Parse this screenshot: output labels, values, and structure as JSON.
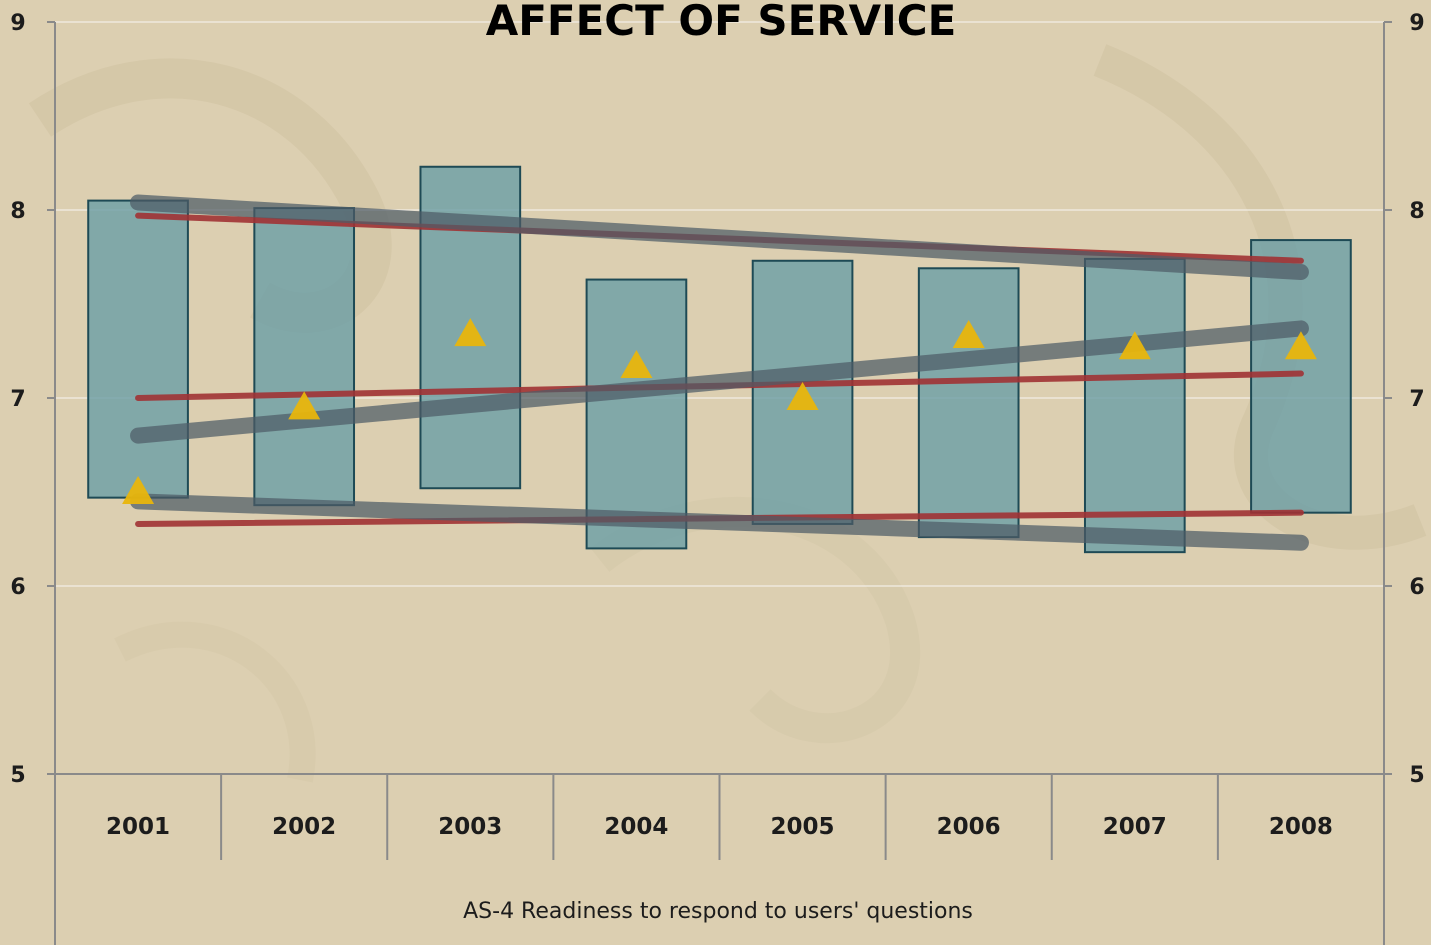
{
  "chart_data": {
    "type": "bar",
    "title": "AFFECT OF SERVICE",
    "xlabel": "AS-4 Readiness to respond to users' questions",
    "ylabel": "",
    "ylim": [
      5,
      9
    ],
    "yticks": [
      "5",
      "6",
      "7",
      "8",
      "9"
    ],
    "categories": [
      "2001",
      "2002",
      "2003",
      "2004",
      "2005",
      "2006",
      "2007",
      "2008"
    ],
    "series": [
      {
        "kind": "floating-bar",
        "low": [
          6.47,
          6.43,
          6.52,
          6.2,
          6.33,
          6.26,
          6.18,
          6.39
        ],
        "high": [
          8.05,
          8.01,
          8.23,
          7.63,
          7.73,
          7.69,
          7.74,
          7.84
        ]
      },
      {
        "kind": "marker",
        "values": [
          6.5,
          6.95,
          7.34,
          7.17,
          7.0,
          7.33,
          7.27,
          7.27
        ]
      },
      {
        "kind": "trend-line-red",
        "lines": [
          {
            "start": 7.97,
            "end": 7.73
          },
          {
            "start": 7.0,
            "end": 7.13
          },
          {
            "start": 6.33,
            "end": 6.39
          }
        ]
      },
      {
        "kind": "trend-line-gray",
        "lines": [
          {
            "start": 8.04,
            "end": 7.67
          },
          {
            "start": 6.8,
            "end": 7.37
          },
          {
            "start": 6.45,
            "end": 6.23
          }
        ]
      }
    ],
    "grid": true,
    "legend": "none",
    "colors": {
      "background": "#dccfb1",
      "bar_fill": "#6c9fa6",
      "bar_stroke": "#1e4a55",
      "marker": "#e8b50c",
      "trend_red": "#a03234",
      "trend_gray": "#4e5b66",
      "axis": "#8a8a8a",
      "gridline": "#f2eee6"
    }
  }
}
